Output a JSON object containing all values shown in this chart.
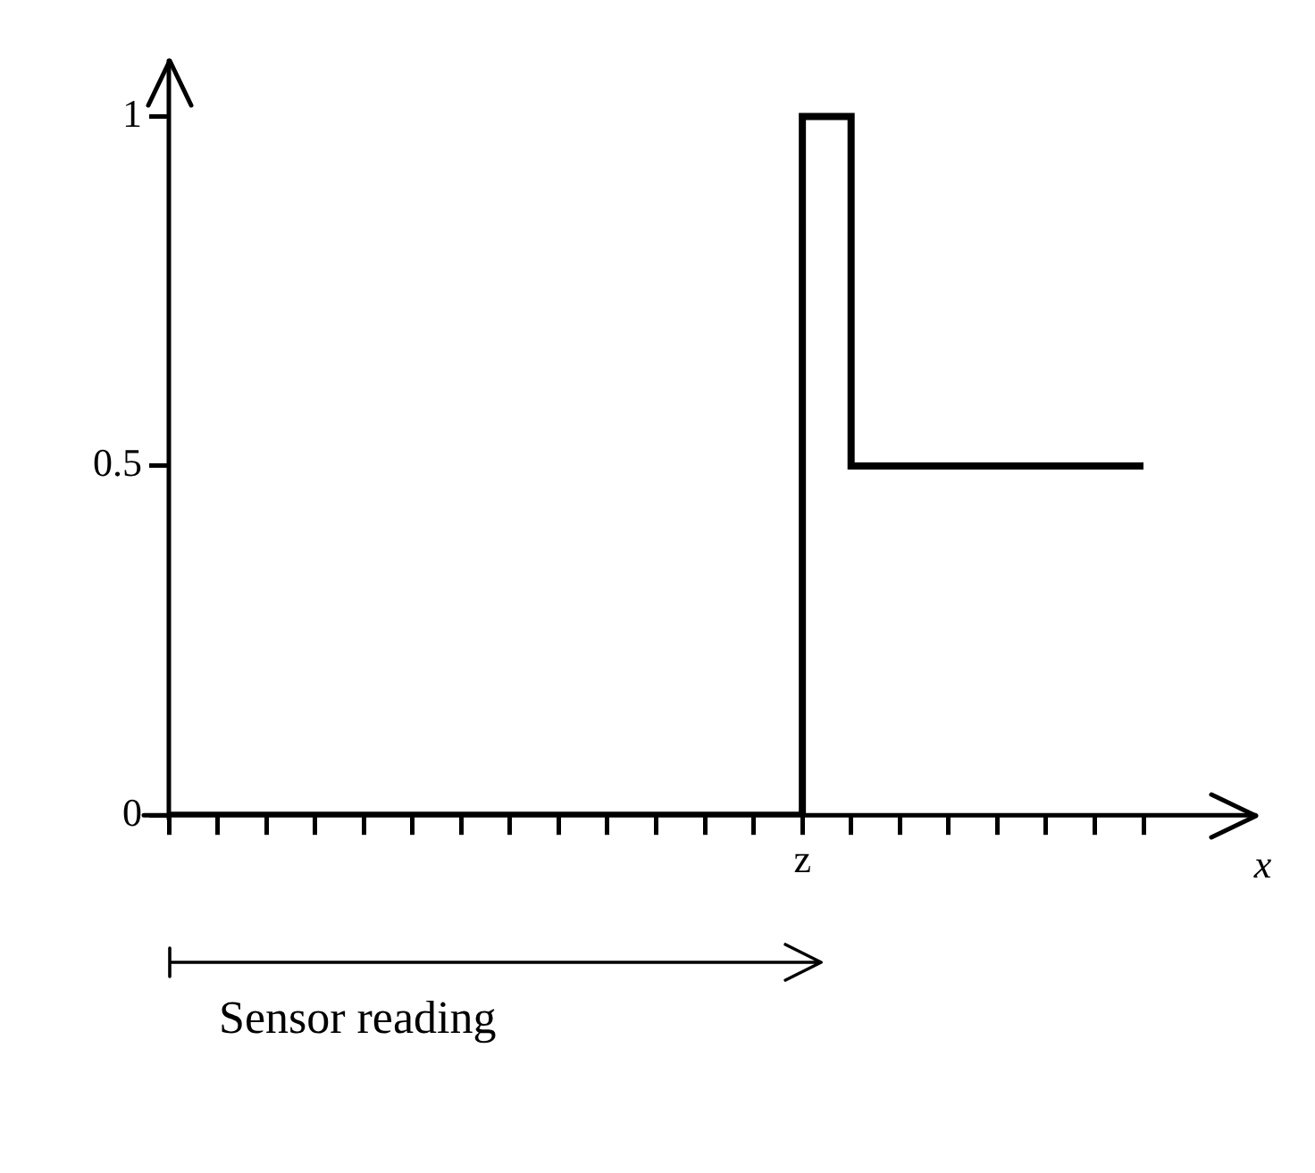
{
  "chart_data": {
    "type": "step",
    "xlabel": "x",
    "categories": [
      null,
      null,
      null,
      null,
      null,
      null,
      null,
      null,
      null,
      null,
      null,
      null,
      null,
      "z",
      null,
      null,
      null,
      null,
      null,
      null,
      null
    ],
    "series": [
      {
        "color": "#000000",
        "values": [
          0,
          0,
          0,
          0,
          0,
          0,
          0,
          0,
          0,
          0,
          0,
          0,
          0,
          1,
          0.5,
          0.5,
          0.5,
          0.5,
          0.5,
          0.5,
          0.5
        ]
      }
    ],
    "ylim": [
      0,
      1.08
    ],
    "yticks": [
      0,
      0.5,
      1
    ],
    "annotations": [
      "Sensor reading"
    ]
  }
}
